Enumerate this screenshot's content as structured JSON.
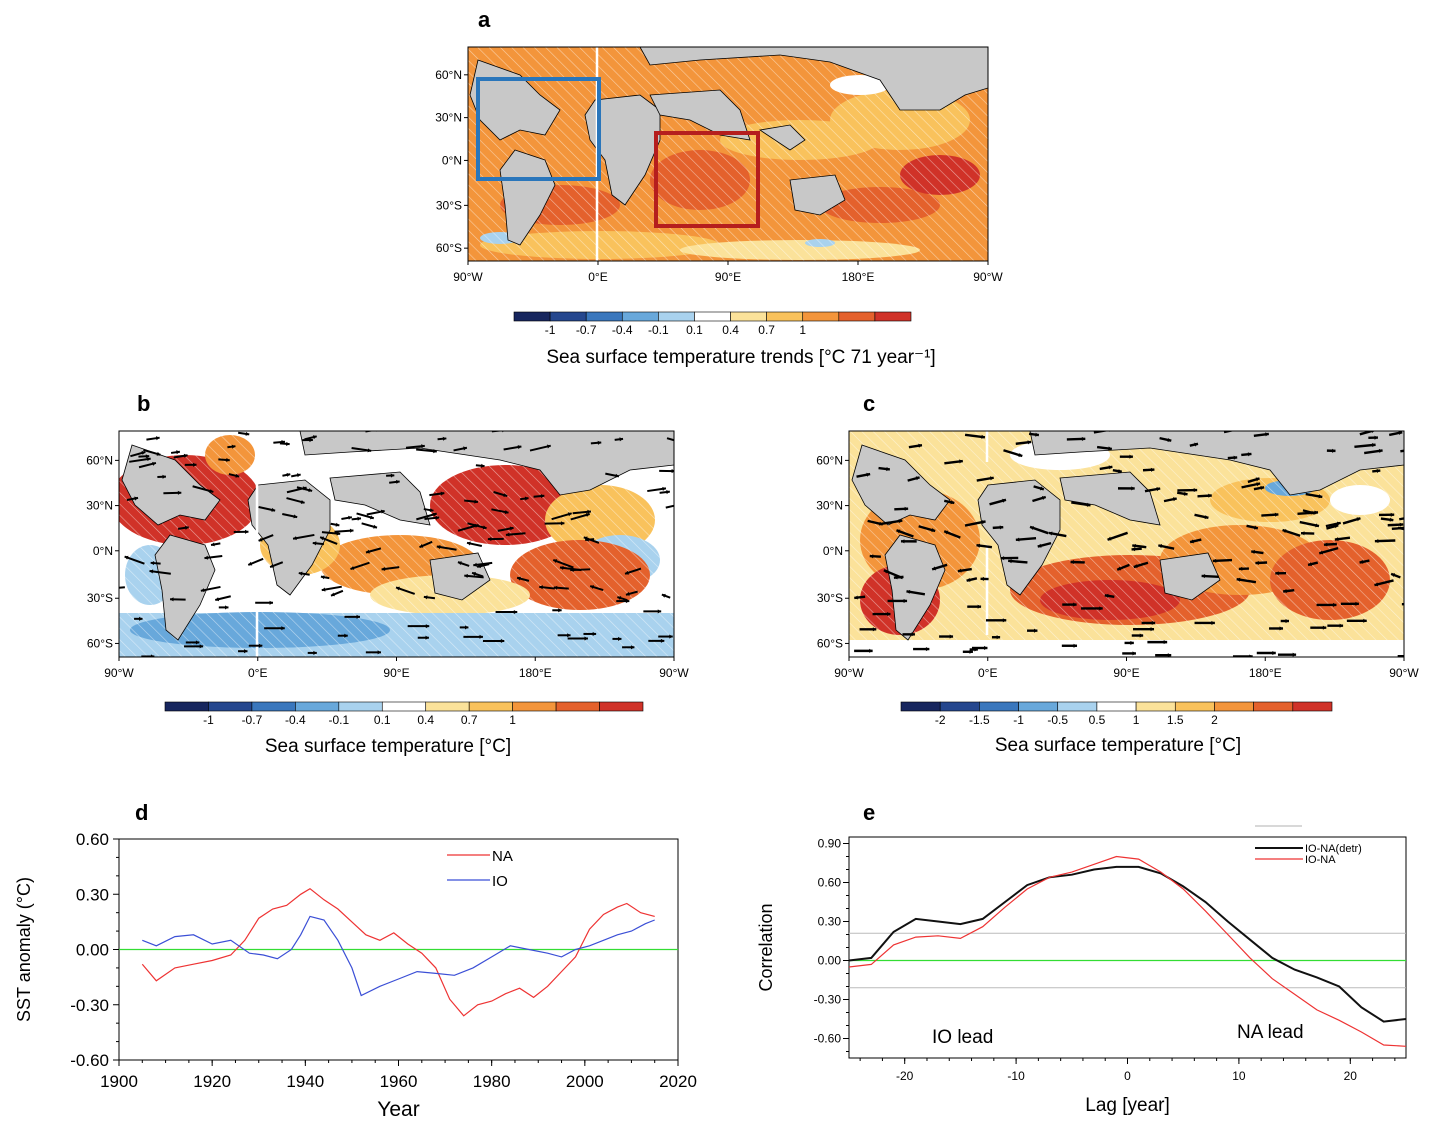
{
  "panels": {
    "a": "a",
    "b": "b",
    "c": "c",
    "d": "d",
    "e": "e"
  },
  "colors": {
    "land": "#c8c8c8",
    "warm": [
      "#fbe29a",
      "#f9c25c",
      "#f3953b",
      "#e4612c",
      "#d03228"
    ],
    "cool": [
      "#a9d2ee",
      "#68a8db",
      "#3a77bd",
      "#25478e",
      "#17265e"
    ],
    "box_blue": "#2a76bb",
    "box_red": "#b51e1e",
    "na_line": "#ee3333",
    "io_line": "#3b4fd6",
    "zero_line": "#33dd33",
    "detr_line": "#111111"
  },
  "maps": {
    "lon_ticks": [
      "90°W",
      "0°E",
      "90°E",
      "180°E",
      "90°W"
    ],
    "lat_ticks_a": [
      "60°N",
      "30°N",
      "0°N",
      "30°S",
      "60°S"
    ],
    "lat_ticks_bc": [
      "60°N",
      "30°N",
      "0°N",
      "30°S",
      "60°S"
    ]
  },
  "colorbars": {
    "a": {
      "labels": [
        "-1",
        "-0.7",
        "-0.4",
        "-0.1",
        "0.1",
        "0.4",
        "0.7",
        "1"
      ],
      "title": "Sea surface temperature trends [°C 71 year⁻¹]"
    },
    "b": {
      "labels": [
        "-1",
        "-0.7",
        "-0.4",
        "-0.1",
        "0.1",
        "0.4",
        "0.7",
        "1"
      ],
      "title": "Sea surface temperature [°C]"
    },
    "c": {
      "labels": [
        "-2",
        "-1.5",
        "-1",
        "-0.5",
        "0.5",
        "1",
        "1.5",
        "2"
      ],
      "title": "Sea surface temperature [°C]"
    }
  },
  "chart_data": [
    {
      "panel": "d",
      "type": "line",
      "xlabel": "Year",
      "ylabel": "SST anomaly (°C)",
      "xlim": [
        1900,
        2020
      ],
      "ylim": [
        -0.6,
        0.6
      ],
      "x_ticks": [
        "1900",
        "1920",
        "1940",
        "1960",
        "1980",
        "2000",
        "2020"
      ],
      "y_ticks": [
        "0.60",
        "0.30",
        "0.00",
        "-0.30",
        "-0.60"
      ],
      "series": [
        {
          "name": "NA",
          "x": [
            1905,
            1908,
            1912,
            1916,
            1920,
            1924,
            1927,
            1930,
            1933,
            1936,
            1939,
            1941,
            1944,
            1947,
            1950,
            1953,
            1956,
            1959,
            1962,
            1965,
            1968,
            1971,
            1974,
            1977,
            1980,
            1983,
            1986,
            1989,
            1992,
            1995,
            1998,
            2001,
            2004,
            2007,
            2009,
            2012,
            2015
          ],
          "values": [
            -0.08,
            -0.17,
            -0.1,
            -0.08,
            -0.06,
            -0.03,
            0.05,
            0.17,
            0.22,
            0.24,
            0.3,
            0.33,
            0.27,
            0.22,
            0.15,
            0.08,
            0.05,
            0.09,
            0.03,
            -0.02,
            -0.1,
            -0.27,
            -0.36,
            -0.3,
            -0.28,
            -0.24,
            -0.21,
            -0.26,
            -0.2,
            -0.12,
            -0.04,
            0.11,
            0.19,
            0.23,
            0.25,
            0.2,
            0.18
          ]
        },
        {
          "name": "IO",
          "x": [
            1905,
            1908,
            1912,
            1916,
            1920,
            1924,
            1928,
            1931,
            1934,
            1937,
            1939,
            1941,
            1944,
            1947,
            1950,
            1952,
            1956,
            1960,
            1964,
            1968,
            1972,
            1976,
            1980,
            1984,
            1988,
            1992,
            1995,
            1998,
            2001,
            2004,
            2007,
            2010,
            2013,
            2015
          ],
          "values": [
            0.05,
            0.02,
            0.07,
            0.08,
            0.03,
            0.05,
            -0.02,
            -0.03,
            -0.05,
            0.0,
            0.08,
            0.18,
            0.16,
            0.05,
            -0.1,
            -0.25,
            -0.2,
            -0.16,
            -0.12,
            -0.13,
            -0.14,
            -0.1,
            -0.04,
            0.02,
            0.0,
            -0.02,
            -0.04,
            0.0,
            0.02,
            0.05,
            0.08,
            0.1,
            0.14,
            0.16
          ]
        }
      ],
      "legend": [
        "NA",
        "IO"
      ],
      "reference_line": 0.0
    },
    {
      "panel": "e",
      "type": "line",
      "xlabel": "Lag [year]",
      "ylabel": "Correlation",
      "xlim": [
        -25,
        25
      ],
      "ylim": [
        -0.75,
        0.95
      ],
      "x_ticks": [
        "-20",
        "-10",
        "0",
        "10",
        "20"
      ],
      "y_ticks": [
        "0.90",
        "0.60",
        "0.30",
        "0.00",
        "-0.30",
        "-0.60"
      ],
      "series": [
        {
          "name": "IO-NA(detr)",
          "x": [
            -25,
            -23,
            -21,
            -19,
            -17,
            -15,
            -13,
            -11,
            -9,
            -7,
            -5,
            -3,
            -1,
            1,
            3,
            5,
            7,
            9,
            11,
            13,
            15,
            17,
            19,
            21,
            23,
            25
          ],
          "values": [
            0.0,
            0.02,
            0.22,
            0.32,
            0.3,
            0.28,
            0.32,
            0.45,
            0.58,
            0.64,
            0.66,
            0.7,
            0.72,
            0.72,
            0.67,
            0.57,
            0.45,
            0.3,
            0.16,
            0.02,
            -0.07,
            -0.13,
            -0.2,
            -0.36,
            -0.47,
            -0.45
          ]
        },
        {
          "name": "IO-NA",
          "x": [
            -25,
            -23,
            -21,
            -19,
            -17,
            -15,
            -13,
            -11,
            -9,
            -7,
            -5,
            -3,
            -1,
            1,
            3,
            5,
            7,
            9,
            11,
            13,
            15,
            17,
            19,
            21,
            23,
            25
          ],
          "values": [
            -0.05,
            -0.03,
            0.12,
            0.18,
            0.19,
            0.17,
            0.26,
            0.41,
            0.55,
            0.64,
            0.68,
            0.74,
            0.8,
            0.78,
            0.68,
            0.55,
            0.38,
            0.2,
            0.02,
            -0.14,
            -0.26,
            -0.38,
            -0.46,
            -0.55,
            -0.65,
            -0.66
          ]
        }
      ],
      "legend": [
        "IO-NA(detr)",
        "IO-NA"
      ],
      "reference_line": 0.0,
      "significance_lines": [
        0.21,
        -0.21
      ],
      "annotations": [
        "IO lead",
        "NA lead"
      ]
    }
  ]
}
